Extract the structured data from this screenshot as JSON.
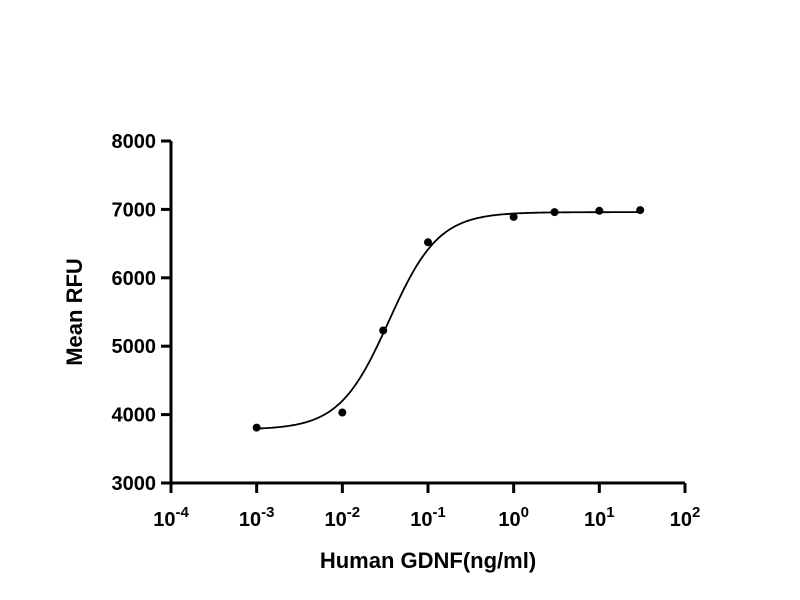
{
  "chart_data": {
    "type": "scatter",
    "title": "",
    "xlabel": "Human GDNF(ng/ml)",
    "ylabel": "Mean RFU",
    "x_scale": "log10",
    "xlim": [
      0.0001,
      100
    ],
    "ylim": [
      3000,
      8000
    ],
    "grid": false,
    "x_ticks": [
      {
        "base": "10",
        "exp": "-4"
      },
      {
        "base": "10",
        "exp": "-3"
      },
      {
        "base": "10",
        "exp": "-2"
      },
      {
        "base": "10",
        "exp": "-1"
      },
      {
        "base": "10",
        "exp": "0"
      },
      {
        "base": "10",
        "exp": "1"
      },
      {
        "base": "10",
        "exp": "2"
      }
    ],
    "y_ticks": [
      "3000",
      "4000",
      "5000",
      "6000",
      "7000",
      "8000"
    ],
    "series": [
      {
        "points": [
          {
            "x": 0.001,
            "y": 3810
          },
          {
            "x": 0.01,
            "y": 4030
          },
          {
            "x": 0.03,
            "y": 5230
          },
          {
            "x": 0.1,
            "y": 6520
          },
          {
            "x": 1,
            "y": 6890
          },
          {
            "x": 3,
            "y": 6960
          },
          {
            "x": 10,
            "y": 6980
          },
          {
            "x": 30,
            "y": 6990
          }
        ],
        "fit": {
          "model": "4PL",
          "bottom": 3780,
          "top": 6960,
          "ec50": 0.035,
          "hill": 1.5
        }
      }
    ],
    "colors": {
      "line": "#000000",
      "points": "#000000"
    }
  }
}
